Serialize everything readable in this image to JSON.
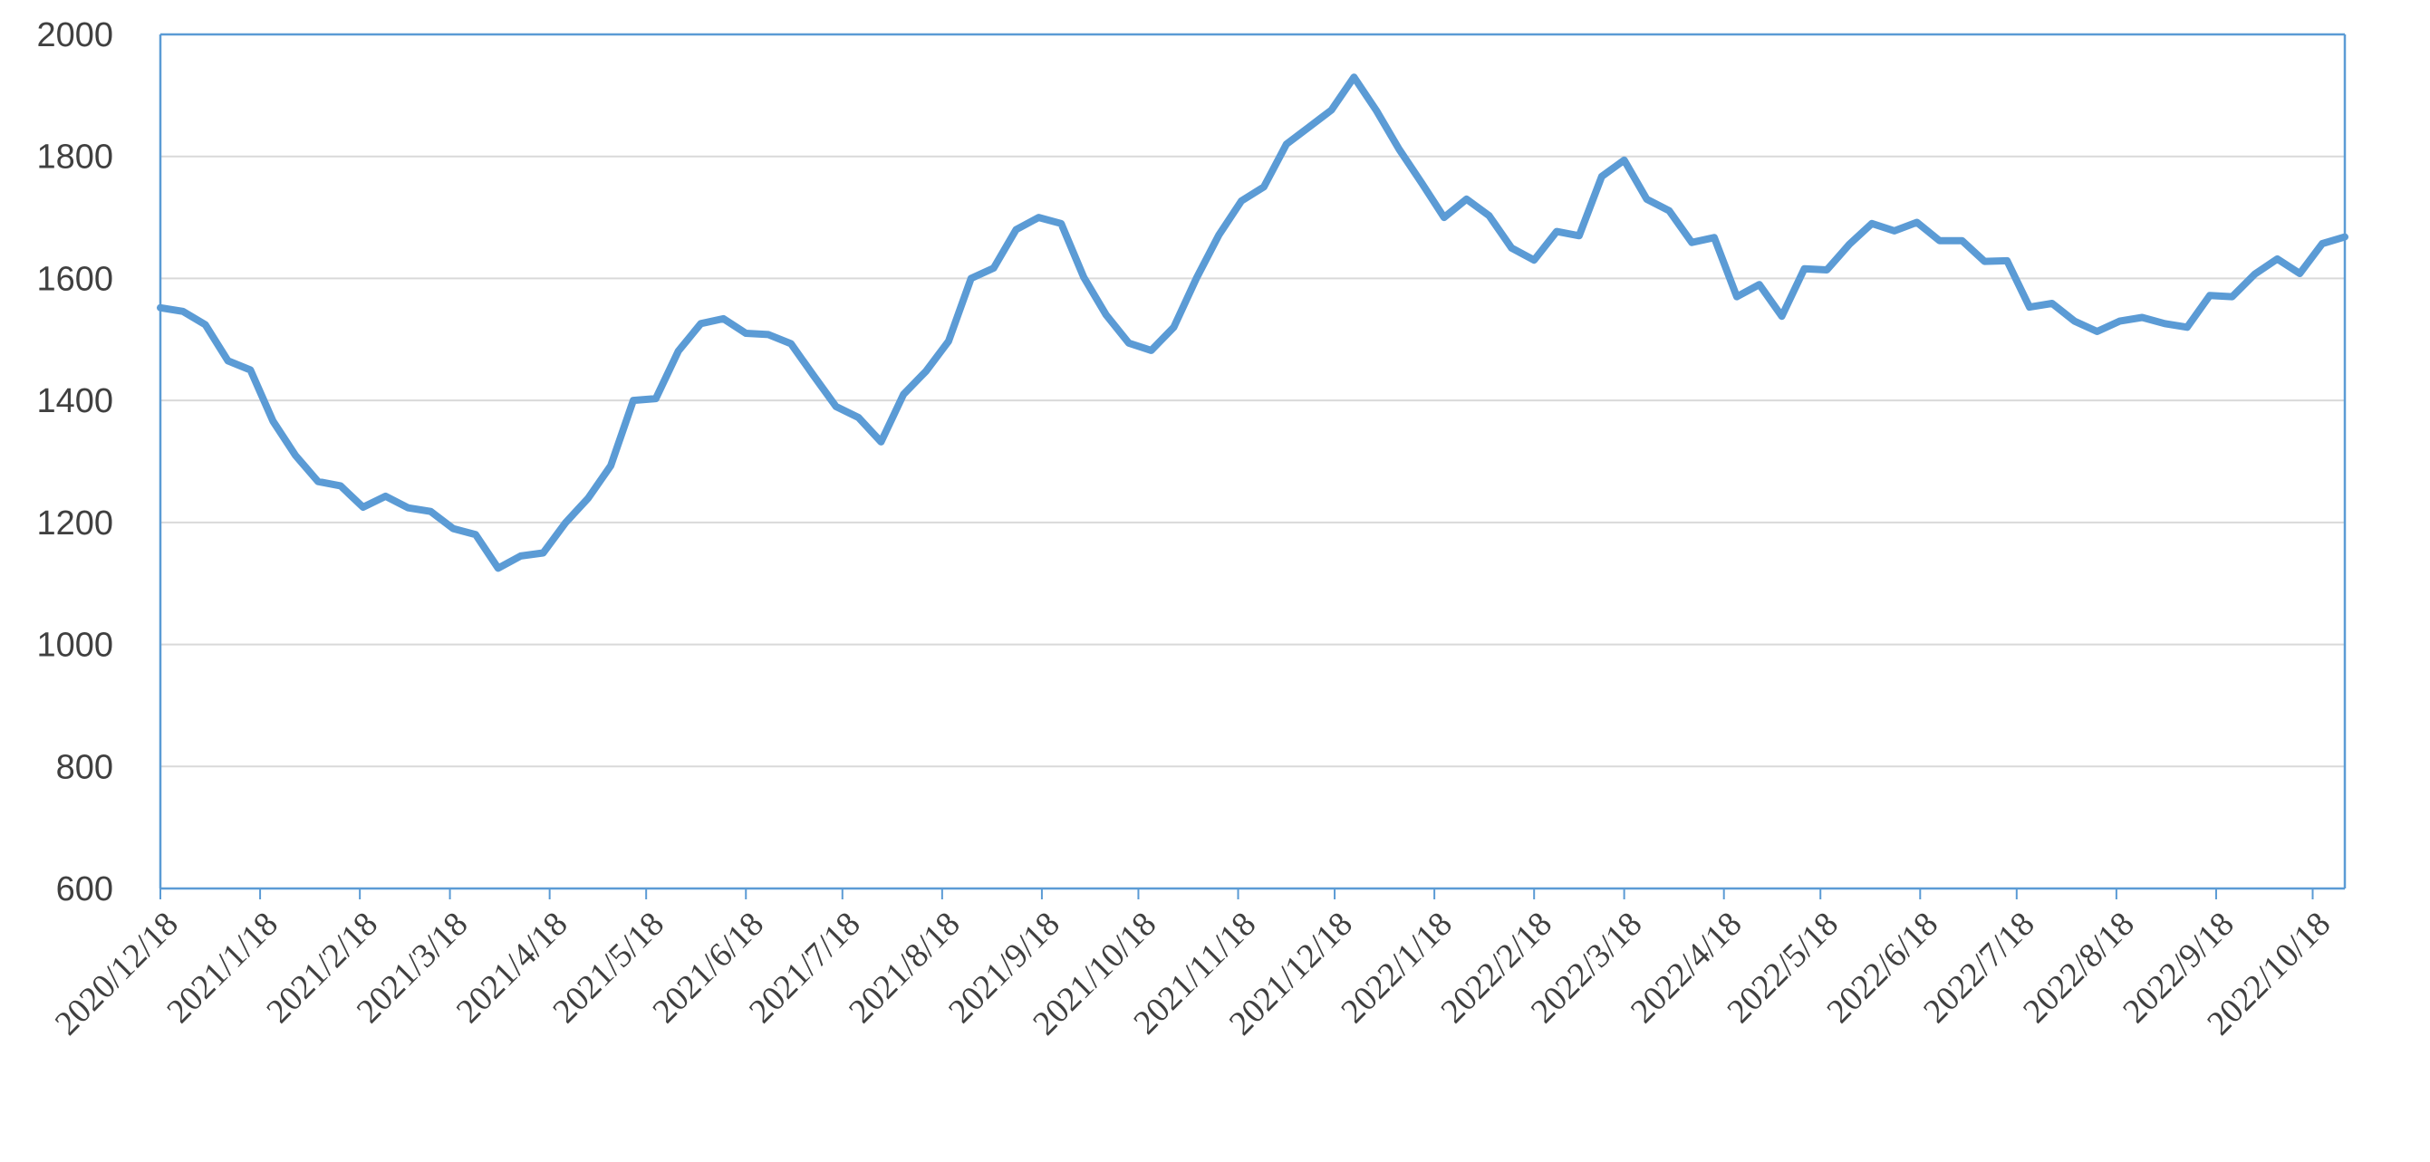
{
  "chart_data": {
    "type": "line",
    "title": "",
    "xlabel": "",
    "ylabel": "",
    "ylim": [
      600,
      2000
    ],
    "y_ticks": [
      2000,
      1800,
      1600,
      1400,
      1200,
      1000,
      800,
      600
    ],
    "x_tick_labels": [
      "2020/12/18",
      "2021/1/18",
      "2021/2/18",
      "2021/3/18",
      "2021/4/18",
      "2021/5/18",
      "2021/6/18",
      "2021/7/18",
      "2021/8/18",
      "2021/9/18",
      "2021/10/18",
      "2021/11/18",
      "2021/12/18",
      "2022/1/18",
      "2022/2/18",
      "2022/3/18",
      "2022/4/18",
      "2022/5/18",
      "2022/6/18",
      "2022/7/18",
      "2022/8/18",
      "2022/9/18",
      "2022/10/18"
    ],
    "grid": true,
    "legend": "none",
    "colors": {
      "series": "#5b9bd5",
      "grid": "#d9d9d9",
      "axis": "#5b9bd5",
      "text": "#404040"
    },
    "series": [
      {
        "x": [
          "2020/12/18",
          "2020/12/25",
          "2021/1/1",
          "2021/1/8",
          "2021/1/15",
          "2021/1/22",
          "2021/1/29",
          "2021/2/5",
          "2021/2/12",
          "2021/2/19",
          "2021/2/26",
          "2021/3/5",
          "2021/3/12",
          "2021/3/19",
          "2021/3/26",
          "2021/4/2",
          "2021/4/9",
          "2021/4/16",
          "2021/4/23",
          "2021/4/30",
          "2021/5/7",
          "2021/5/14",
          "2021/5/21",
          "2021/5/28",
          "2021/6/4",
          "2021/6/11",
          "2021/6/18",
          "2021/6/25",
          "2021/7/2",
          "2021/7/9",
          "2021/7/16",
          "2021/7/23",
          "2021/7/30",
          "2021/8/6",
          "2021/8/13",
          "2021/8/20",
          "2021/8/27",
          "2021/9/3",
          "2021/9/10",
          "2021/9/17",
          "2021/9/24",
          "2021/10/1",
          "2021/10/8",
          "2021/10/15",
          "2021/10/22",
          "2021/10/29",
          "2021/11/5",
          "2021/11/12",
          "2021/11/19",
          "2021/11/26",
          "2021/12/3",
          "2021/12/10",
          "2021/12/17",
          "2021/12/24",
          "2021/12/31",
          "2022/1/7",
          "2022/1/14",
          "2022/1/21",
          "2022/1/28",
          "2022/2/4",
          "2022/2/11",
          "2022/2/18",
          "2022/2/25",
          "2022/3/4",
          "2022/3/11",
          "2022/3/18",
          "2022/3/25",
          "2022/4/1",
          "2022/4/8",
          "2022/4/15",
          "2022/4/22",
          "2022/4/29",
          "2022/5/6",
          "2022/5/13",
          "2022/5/20",
          "2022/5/27",
          "2022/6/3",
          "2022/6/10",
          "2022/6/17",
          "2022/6/24",
          "2022/7/1",
          "2022/7/8",
          "2022/7/15",
          "2022/7/22",
          "2022/7/29",
          "2022/8/5",
          "2022/8/12",
          "2022/8/19",
          "2022/8/26",
          "2022/9/2",
          "2022/9/9",
          "2022/9/16",
          "2022/9/23",
          "2022/9/30",
          "2022/10/7",
          "2022/10/14",
          "2022/10/21",
          "2022/10/28"
        ],
        "values": [
          1552,
          1546,
          1524,
          1465,
          1450,
          1366,
          1310,
          1267,
          1260,
          1225,
          1243,
          1224,
          1218,
          1190,
          1180,
          1125,
          1145,
          1150,
          1200,
          1240,
          1293,
          1400,
          1403,
          1481,
          1526,
          1534,
          1510,
          1508,
          1493,
          1441,
          1390,
          1372,
          1332,
          1410,
          1448,
          1497,
          1600,
          1617,
          1680,
          1700,
          1690,
          1602,
          1540,
          1494,
          1482,
          1520,
          1600,
          1671,
          1727,
          1750,
          1820,
          1848,
          1876,
          1930,
          1875,
          1812,
          1757,
          1700,
          1730,
          1703,
          1650,
          1630,
          1677,
          1670,
          1767,
          1794,
          1730,
          1711,
          1659,
          1667,
          1570,
          1590,
          1538,
          1616,
          1614,
          1656,
          1690,
          1678,
          1692,
          1662,
          1662,
          1628,
          1629,
          1553,
          1559,
          1530,
          1513,
          1530,
          1536,
          1526,
          1520,
          1572,
          1570,
          1607,
          1632,
          1608,
          1657,
          1668
        ]
      }
    ]
  }
}
